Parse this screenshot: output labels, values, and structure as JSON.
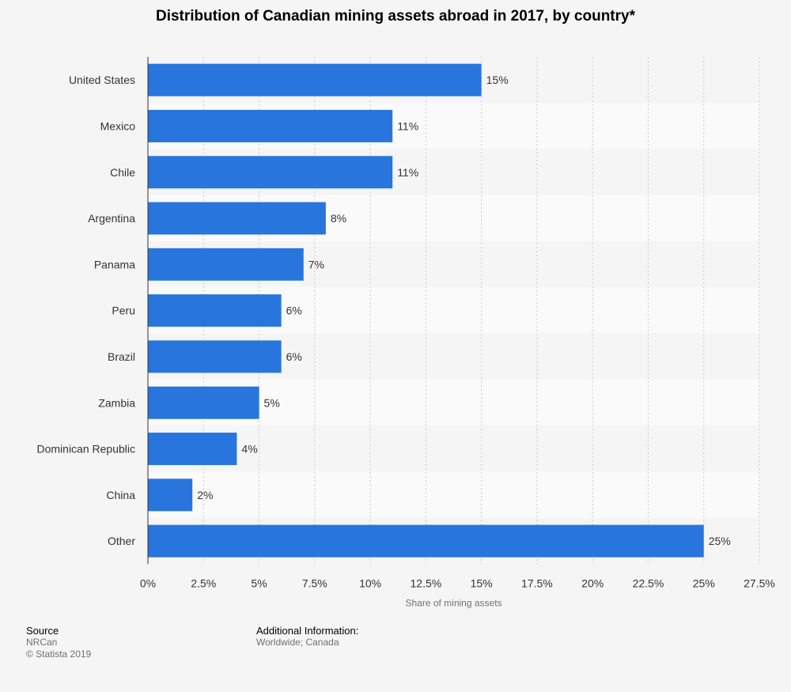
{
  "chart_data": {
    "type": "bar",
    "orientation": "horizontal",
    "title": "Distribution of Canadian mining assets abroad in 2017, by country*",
    "xlabel": "Share of mining assets",
    "ylabel": "",
    "categories": [
      "United States",
      "Mexico",
      "Chile",
      "Argentina",
      "Panama",
      "Peru",
      "Brazil",
      "Zambia",
      "Dominican Republic",
      "China",
      "Other"
    ],
    "values": [
      15,
      11,
      11,
      8,
      7,
      6,
      6,
      5,
      4,
      2,
      25
    ],
    "data_labels": [
      "15%",
      "11%",
      "11%",
      "8%",
      "7%",
      "6%",
      "6%",
      "5%",
      "4%",
      "2%",
      "25%"
    ],
    "xlim": [
      0,
      27.5
    ],
    "x_ticks": [
      0,
      2.5,
      5,
      7.5,
      10,
      12.5,
      15,
      17.5,
      20,
      22.5,
      25,
      27.5
    ],
    "x_tick_labels": [
      "0%",
      "2.5%",
      "5%",
      "7.5%",
      "10%",
      "12.5%",
      "15%",
      "17.5%",
      "20%",
      "22.5%",
      "25%",
      "27.5%"
    ],
    "grid": true,
    "legend": "none",
    "bar_color": "#2876dd",
    "row_band_colors": [
      "#f5f5f5",
      "#fafafa"
    ]
  },
  "footer": {
    "source_heading": "Source",
    "source_name": "NRCan",
    "copyright": "© Statista 2019",
    "additional_heading": "Additional Information:",
    "additional_text": "Worldwide; Canada"
  }
}
